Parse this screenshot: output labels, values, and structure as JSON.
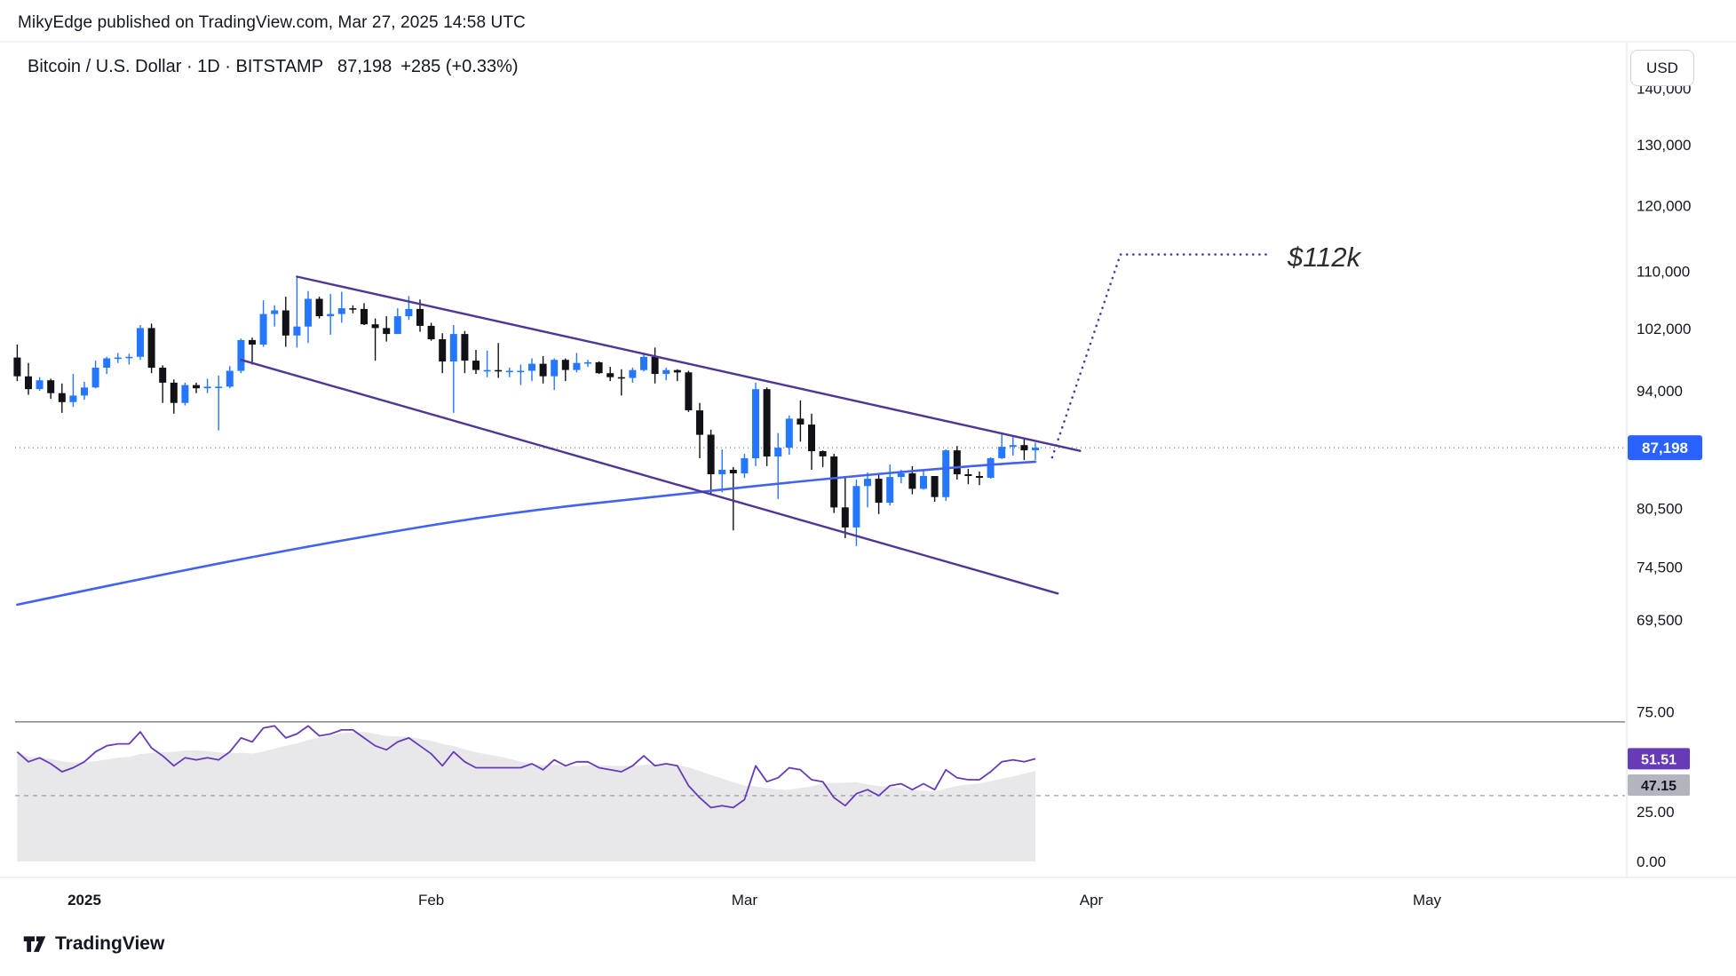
{
  "attribution": {
    "text": "MikyEdge published on TradingView.com, Mar 27, 2025 14:58 UTC"
  },
  "header": {
    "symbol_title": "Bitcoin / U.S. Dollar · 1D · BITSTAMP",
    "last_price": "87,198",
    "change": "+285 (+0.33%)",
    "currency_button": "USD"
  },
  "annotation": {
    "text": "$112k"
  },
  "footer": {
    "brand": "TradingView"
  },
  "colors": {
    "accent_blue": "#2962FF",
    "candle_up": "#2577ff",
    "candle_down": "#111116",
    "trend_purple": "#4f3699",
    "rsi_purple": "#673ab7",
    "ma_blue": "#4262f0",
    "badge_gray": "#b2b5be",
    "text": "#131722",
    "border": "#e0e3eb"
  },
  "chart_data": {
    "type": "candlestick",
    "symbol": "Bitcoin / U.S. Dollar",
    "exchange": "BITSTAMP",
    "interval": "1D",
    "scale": "log",
    "start_date": "2024-12-26",
    "current_price": 87198,
    "candle_format": "[open,high,low,close] USD, one candle per day",
    "candles": [
      [
        98200,
        99900,
        95200,
        95800
      ],
      [
        95800,
        97500,
        93500,
        94200
      ],
      [
        94200,
        95700,
        94000,
        95300
      ],
      [
        95300,
        95500,
        93000,
        93700
      ],
      [
        93700,
        94900,
        91300,
        92600
      ],
      [
        92600,
        96100,
        92000,
        93400
      ],
      [
        93400,
        95100,
        92900,
        94400
      ],
      [
        94400,
        97800,
        94300,
        96900
      ],
      [
        96900,
        98300,
        96100,
        98100
      ],
      [
        98100,
        98800,
        97500,
        98200
      ],
      [
        98200,
        98700,
        97300,
        98300
      ],
      [
        98300,
        102500,
        97900,
        102100
      ],
      [
        102100,
        102700,
        96200,
        96900
      ],
      [
        96900,
        97200,
        92500,
        95000
      ],
      [
        95000,
        95400,
        91200,
        92500
      ],
      [
        92500,
        95000,
        92200,
        94700
      ],
      [
        94700,
        95000,
        93700,
        94300
      ],
      [
        94300,
        95500,
        93700,
        94500
      ],
      [
        94500,
        95900,
        89200,
        94500
      ],
      [
        94500,
        97100,
        94300,
        96500
      ],
      [
        96500,
        100700,
        96200,
        100500
      ],
      [
        100500,
        100800,
        97300,
        99900
      ],
      [
        99900,
        105900,
        99600,
        104000
      ],
      [
        104000,
        105200,
        102300,
        104500
      ],
      [
        104500,
        106400,
        99600,
        101100
      ],
      [
        101100,
        109400,
        99500,
        102300
      ],
      [
        102300,
        107200,
        100100,
        106100
      ],
      [
        106100,
        106400,
        103400,
        103700
      ],
      [
        103700,
        106800,
        101200,
        104000
      ],
      [
        104000,
        107100,
        102800,
        104800
      ],
      [
        104800,
        105200,
        104100,
        104700
      ],
      [
        104700,
        105500,
        102500,
        102600
      ],
      [
        102600,
        103400,
        97800,
        102100
      ],
      [
        102100,
        103700,
        100300,
        101300
      ],
      [
        101300,
        104800,
        101300,
        103700
      ],
      [
        103700,
        106500,
        103200,
        104700
      ],
      [
        104700,
        106000,
        101600,
        102400
      ],
      [
        102400,
        102800,
        100400,
        100600
      ],
      [
        100600,
        101400,
        96200,
        97700
      ],
      [
        97700,
        102500,
        91300,
        101300
      ],
      [
        101300,
        101700,
        96200,
        97800
      ],
      [
        97800,
        99200,
        96100,
        96600
      ],
      [
        96600,
        99100,
        95700,
        96600
      ],
      [
        96600,
        100100,
        95600,
        96500
      ],
      [
        96500,
        96900,
        95700,
        96500
      ],
      [
        96500,
        97300,
        94700,
        96500
      ],
      [
        96500,
        98100,
        95200,
        97400
      ],
      [
        97400,
        98400,
        94900,
        95800
      ],
      [
        95800,
        98100,
        94100,
        97900
      ],
      [
        97900,
        98100,
        95200,
        96600
      ],
      [
        96600,
        98800,
        96300,
        97500
      ],
      [
        97500,
        97900,
        97000,
        97600
      ],
      [
        97600,
        97700,
        96100,
        96200
      ],
      [
        96200,
        97000,
        95200,
        95700
      ],
      [
        95700,
        96700,
        93400,
        95600
      ],
      [
        95600,
        96900,
        95000,
        96600
      ],
      [
        96600,
        98800,
        96400,
        98300
      ],
      [
        98300,
        99500,
        94900,
        96100
      ],
      [
        96100,
        96900,
        95300,
        96600
      ],
      [
        96600,
        96700,
        95200,
        96300
      ],
      [
        96300,
        96500,
        91400,
        91600
      ],
      [
        91600,
        92500,
        86000,
        88700
      ],
      [
        88700,
        89300,
        82100,
        84200
      ],
      [
        84200,
        87000,
        82200,
        84700
      ],
      [
        84700,
        85000,
        78200,
        84300
      ],
      [
        84300,
        86500,
        83800,
        86000
      ],
      [
        86000,
        95000,
        85100,
        94200
      ],
      [
        94200,
        94400,
        85100,
        86200
      ],
      [
        86200,
        88900,
        81500,
        87200
      ],
      [
        87200,
        91000,
        86400,
        90600
      ],
      [
        90600,
        92800,
        87900,
        89900
      ],
      [
        89900,
        91200,
        84700,
        86800
      ],
      [
        86800,
        86900,
        85000,
        86200
      ],
      [
        86200,
        86500,
        80000,
        80600
      ],
      [
        80600,
        84000,
        77400,
        78500
      ],
      [
        78500,
        83600,
        76600,
        82900
      ],
      [
        82900,
        84400,
        80600,
        83700
      ],
      [
        83700,
        84300,
        79900,
        81100
      ],
      [
        81100,
        85300,
        80800,
        83900
      ],
      [
        83900,
        84700,
        83200,
        84300
      ],
      [
        84300,
        85100,
        82000,
        82600
      ],
      [
        82600,
        84700,
        82500,
        84000
      ],
      [
        84000,
        84000,
        81200,
        81700
      ],
      [
        81700,
        87000,
        81300,
        86900
      ],
      [
        86900,
        87400,
        83600,
        84200
      ],
      [
        84200,
        84800,
        83100,
        84000
      ],
      [
        84000,
        84500,
        83000,
        83800
      ],
      [
        83800,
        86100,
        83700,
        86000
      ],
      [
        86000,
        88800,
        85900,
        87300
      ],
      [
        87300,
        88500,
        86300,
        87500
      ],
      [
        87500,
        88300,
        85800,
        86900
      ],
      [
        86900,
        87800,
        85800,
        87198
      ]
    ],
    "ma_trend_line": [
      [
        0,
        70900
      ],
      [
        13,
        73800
      ],
      [
        28,
        77000
      ],
      [
        43,
        79900
      ],
      [
        58,
        81900
      ],
      [
        73,
        83800
      ],
      [
        85,
        85100
      ],
      [
        91,
        85600
      ]
    ],
    "trendlines": [
      {
        "from": [
          25,
          109250
        ],
        "to": [
          95,
          86830
        ]
      },
      {
        "from": [
          20,
          97900
        ],
        "to": [
          93,
          71950
        ]
      }
    ],
    "projection_path": [
      [
        92.5,
        86100
      ],
      [
        98.6,
        112500
      ],
      [
        112,
        112500
      ]
    ],
    "projection_target_label": "$112k",
    "price_axis": {
      "current_price_label": "87,198",
      "ticks": [
        {
          "v": 140000,
          "label": "140,000"
        },
        {
          "v": 130000,
          "label": "130,000"
        },
        {
          "v": 120000,
          "label": "120,000"
        },
        {
          "v": 110000,
          "label": "110,000"
        },
        {
          "v": 102000,
          "label": "102,000"
        },
        {
          "v": 94000,
          "label": "94,000"
        },
        {
          "v": 80500,
          "label": "80,500"
        },
        {
          "v": 74500,
          "label": "74,500"
        },
        {
          "v": 69500,
          "label": "69,500"
        }
      ]
    },
    "time_axis": {
      "labels": [
        {
          "d": 6,
          "label": "2025",
          "bold": true
        },
        {
          "d": 37,
          "label": "Feb"
        },
        {
          "d": 65,
          "label": "Mar"
        },
        {
          "d": 96,
          "label": "Apr"
        },
        {
          "d": 126,
          "label": "May"
        }
      ]
    },
    "rsi_values": [
      55,
      50,
      52,
      49,
      45,
      47,
      50,
      55,
      58,
      59,
      59,
      65,
      57,
      53,
      48,
      52,
      51,
      52,
      51,
      55,
      62,
      60,
      67,
      68,
      62,
      64,
      68,
      63,
      64,
      66,
      66,
      62,
      58,
      56,
      60,
      62,
      58,
      54,
      48,
      55,
      50,
      47,
      47,
      47,
      47,
      47,
      49,
      46,
      51,
      48,
      50,
      50,
      47,
      46,
      45,
      48,
      53,
      48,
      49,
      48,
      38,
      32,
      27,
      28,
      27,
      31,
      48,
      40,
      42,
      47,
      46,
      41,
      40,
      32,
      28,
      34,
      36,
      33,
      38,
      39,
      36,
      39,
      36,
      46,
      42,
      41,
      41,
      45,
      50,
      51,
      50,
      51.51
    ],
    "rsi_current": "51.51",
    "rsi_ma_current": "47.15",
    "indicator": {
      "ticks": [
        {
          "v": 75,
          "label": "75.00"
        },
        {
          "v": 25,
          "label": "25.00"
        },
        {
          "v": 0,
          "label": "0.00"
        }
      ],
      "ref_solid": 70,
      "ref_dashed": 33
    }
  }
}
